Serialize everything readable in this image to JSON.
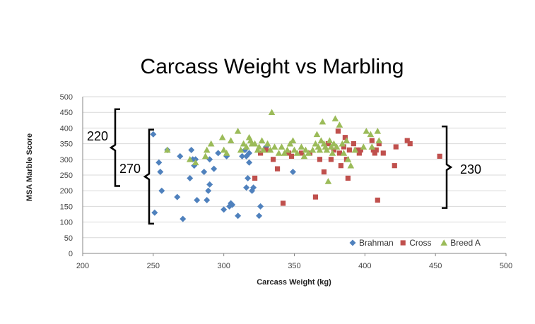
{
  "chart_data": {
    "type": "scatter",
    "title": "Carcass Weight vs Marbling",
    "xlabel": "Carcass Weight (kg)",
    "ylabel": "MSA Marble Score",
    "xlim": [
      200,
      500
    ],
    "ylim": [
      0,
      500
    ],
    "xticks": [
      200,
      250,
      300,
      350,
      400,
      450,
      500
    ],
    "yticks": [
      0,
      50,
      100,
      150,
      200,
      250,
      300,
      350,
      400,
      450,
      500
    ],
    "grid": "horizontal",
    "legend_position": "bottom-right",
    "series": [
      {
        "name": "Brahman",
        "color": "#4f81bd",
        "marker": "diamond",
        "points": [
          [
            250,
            380
          ],
          [
            251,
            130
          ],
          [
            254,
            290
          ],
          [
            255,
            260
          ],
          [
            256,
            200
          ],
          [
            260,
            330
          ],
          [
            267,
            180
          ],
          [
            269,
            310
          ],
          [
            271,
            110
          ],
          [
            276,
            240
          ],
          [
            277,
            330
          ],
          [
            278,
            300
          ],
          [
            279,
            280
          ],
          [
            280,
            300
          ],
          [
            281,
            170
          ],
          [
            286,
            260
          ],
          [
            288,
            170
          ],
          [
            289,
            200
          ],
          [
            290,
            220
          ],
          [
            290,
            300
          ],
          [
            293,
            270
          ],
          [
            296,
            320
          ],
          [
            300,
            140
          ],
          [
            302,
            310
          ],
          [
            304,
            150
          ],
          [
            305,
            160
          ],
          [
            306,
            155
          ],
          [
            310,
            120
          ],
          [
            313,
            310
          ],
          [
            315,
            330
          ],
          [
            316,
            310
          ],
          [
            316,
            210
          ],
          [
            317,
            240
          ],
          [
            318,
            290
          ],
          [
            318,
            320
          ],
          [
            320,
            200
          ],
          [
            321,
            210
          ],
          [
            325,
            120
          ],
          [
            326,
            150
          ],
          [
            330,
            340
          ],
          [
            349,
            260
          ]
        ]
      },
      {
        "name": "Cross",
        "color": "#c0504d",
        "marker": "square",
        "points": [
          [
            322,
            240
          ],
          [
            326,
            320
          ],
          [
            330,
            330
          ],
          [
            335,
            300
          ],
          [
            338,
            270
          ],
          [
            342,
            160
          ],
          [
            346,
            320
          ],
          [
            348,
            310
          ],
          [
            355,
            320
          ],
          [
            361,
            320
          ],
          [
            365,
            180
          ],
          [
            368,
            300
          ],
          [
            371,
            260
          ],
          [
            374,
            350
          ],
          [
            376,
            300
          ],
          [
            378,
            330
          ],
          [
            381,
            390
          ],
          [
            382,
            320
          ],
          [
            383,
            280
          ],
          [
            385,
            340
          ],
          [
            386,
            370
          ],
          [
            387,
            300
          ],
          [
            388,
            240
          ],
          [
            389,
            330
          ],
          [
            392,
            350
          ],
          [
            394,
            330
          ],
          [
            396,
            320
          ],
          [
            397,
            330
          ],
          [
            405,
            360
          ],
          [
            406,
            330
          ],
          [
            407,
            320
          ],
          [
            408,
            330
          ],
          [
            409,
            170
          ],
          [
            410,
            350
          ],
          [
            413,
            320
          ],
          [
            421,
            280
          ],
          [
            422,
            340
          ],
          [
            430,
            360
          ],
          [
            432,
            350
          ],
          [
            453,
            310
          ]
        ]
      },
      {
        "name": "Breed A",
        "color": "#9bbb59",
        "marker": "triangle",
        "points": [
          [
            260,
            330
          ],
          [
            276,
            300
          ],
          [
            280,
            290
          ],
          [
            287,
            310
          ],
          [
            288,
            330
          ],
          [
            291,
            350
          ],
          [
            299,
            370
          ],
          [
            300,
            330
          ],
          [
            302,
            320
          ],
          [
            305,
            360
          ],
          [
            310,
            390
          ],
          [
            312,
            330
          ],
          [
            314,
            350
          ],
          [
            316,
            340
          ],
          [
            318,
            370
          ],
          [
            319,
            360
          ],
          [
            320,
            350
          ],
          [
            322,
            350
          ],
          [
            324,
            330
          ],
          [
            325,
            340
          ],
          [
            327,
            360
          ],
          [
            328,
            330
          ],
          [
            331,
            350
          ],
          [
            333,
            330
          ],
          [
            334,
            450
          ],
          [
            336,
            340
          ],
          [
            339,
            320
          ],
          [
            341,
            340
          ],
          [
            343,
            320
          ],
          [
            345,
            330
          ],
          [
            347,
            350
          ],
          [
            349,
            360
          ],
          [
            350,
            330
          ],
          [
            352,
            320
          ],
          [
            355,
            340
          ],
          [
            357,
            310
          ],
          [
            358,
            330
          ],
          [
            360,
            320
          ],
          [
            363,
            330
          ],
          [
            365,
            350
          ],
          [
            366,
            380
          ],
          [
            367,
            340
          ],
          [
            368,
            330
          ],
          [
            369,
            360
          ],
          [
            370,
            420
          ],
          [
            371,
            350
          ],
          [
            372,
            340
          ],
          [
            373,
            330
          ],
          [
            374,
            230
          ],
          [
            375,
            360
          ],
          [
            376,
            340
          ],
          [
            377,
            320
          ],
          [
            378,
            350
          ],
          [
            379,
            430
          ],
          [
            380,
            340
          ],
          [
            382,
            410
          ],
          [
            384,
            350
          ],
          [
            385,
            320
          ],
          [
            387,
            360
          ],
          [
            388,
            300
          ],
          [
            390,
            280
          ],
          [
            393,
            330
          ],
          [
            399,
            340
          ],
          [
            401,
            390
          ],
          [
            404,
            380
          ],
          [
            405,
            340
          ],
          [
            409,
            390
          ],
          [
            410,
            360
          ]
        ]
      }
    ],
    "annotations": [
      {
        "label": "220",
        "bracket_top": 460,
        "bracket_bottom": 215,
        "side": "left"
      },
      {
        "label": "270",
        "bracket_top": 395,
        "bracket_bottom": 95,
        "side": "left"
      },
      {
        "label": "230",
        "bracket_top": 405,
        "bracket_bottom": 145,
        "side": "right"
      }
    ]
  }
}
